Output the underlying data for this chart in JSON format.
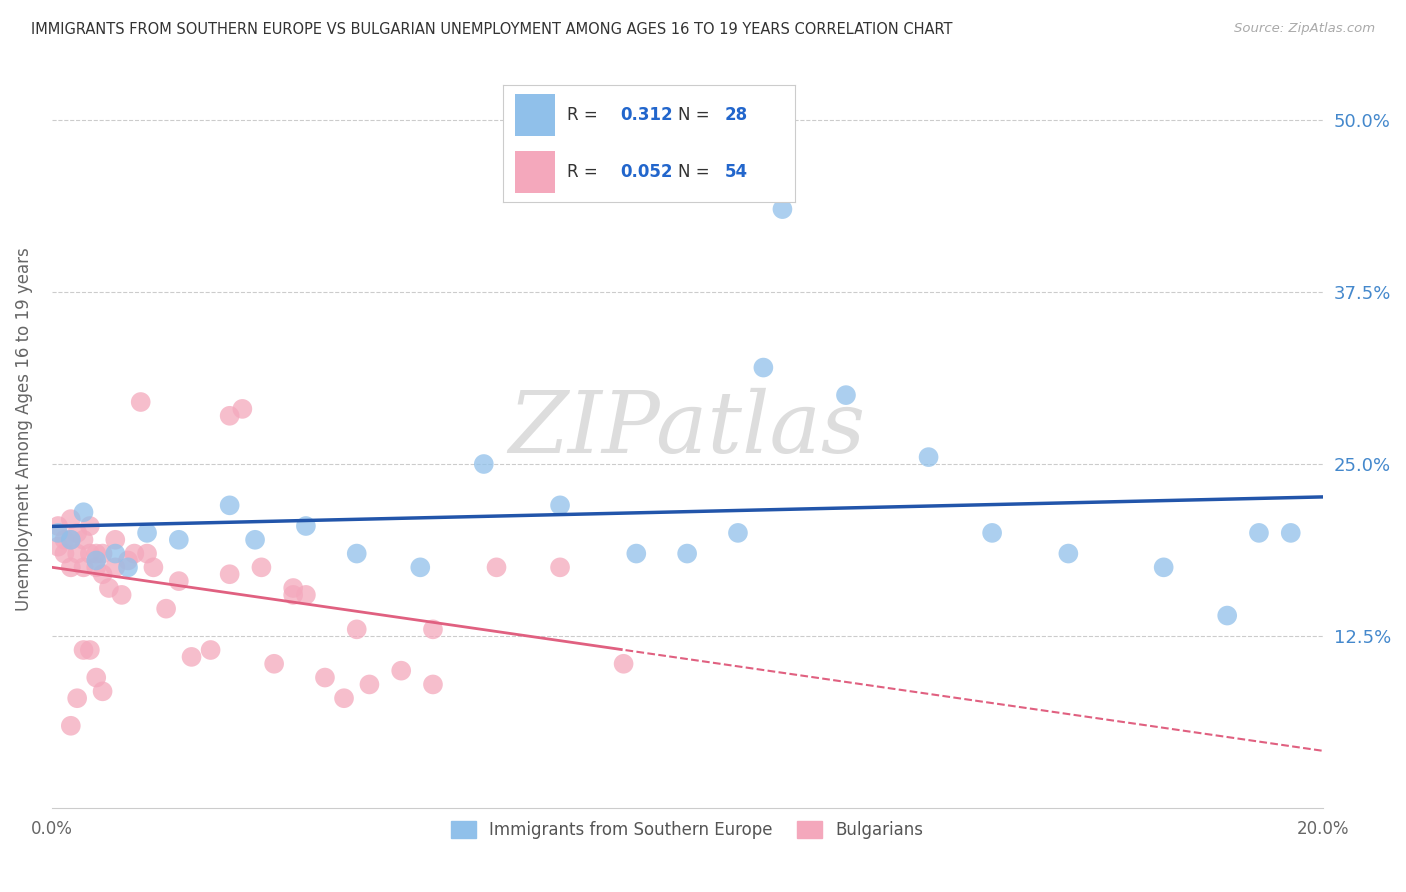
{
  "title": "IMMIGRANTS FROM SOUTHERN EUROPE VS BULGARIAN UNEMPLOYMENT AMONG AGES 16 TO 19 YEARS CORRELATION CHART",
  "source": "Source: ZipAtlas.com",
  "ylabel": "Unemployment Among Ages 16 to 19 years",
  "xlim": [
    0.0,
    0.2
  ],
  "ylim": [
    0.0,
    0.55
  ],
  "ytick_vals": [
    0.125,
    0.25,
    0.375,
    0.5
  ],
  "ytick_labels": [
    "12.5%",
    "25.0%",
    "37.5%",
    "50.0%"
  ],
  "xtick_vals": [
    0.0,
    0.04,
    0.08,
    0.12,
    0.16,
    0.2
  ],
  "xtick_labels": [
    "0.0%",
    "",
    "",
    "",
    "",
    "20.0%"
  ],
  "blue_R": "0.312",
  "blue_N": "28",
  "pink_R": "0.052",
  "pink_N": "54",
  "blue_color": "#90c0ea",
  "pink_color": "#f4a8bc",
  "blue_line_color": "#2255aa",
  "pink_line_color": "#e06080",
  "legend_R_color": "#2266cc",
  "legend_N_color": "#2266cc",
  "ytick_color": "#4488cc",
  "blue_scatter_x": [
    0.001,
    0.003,
    0.005,
    0.007,
    0.01,
    0.012,
    0.015,
    0.02,
    0.028,
    0.032,
    0.04,
    0.048,
    0.058,
    0.068,
    0.08,
    0.092,
    0.1,
    0.108,
    0.115,
    0.125,
    0.138,
    0.148,
    0.112,
    0.16,
    0.175,
    0.185,
    0.19,
    0.195
  ],
  "blue_scatter_y": [
    0.2,
    0.195,
    0.215,
    0.18,
    0.185,
    0.175,
    0.2,
    0.195,
    0.22,
    0.195,
    0.205,
    0.185,
    0.175,
    0.25,
    0.22,
    0.185,
    0.185,
    0.2,
    0.435,
    0.3,
    0.255,
    0.2,
    0.32,
    0.185,
    0.175,
    0.14,
    0.2,
    0.2
  ],
  "pink_scatter_x": [
    0.001,
    0.001,
    0.002,
    0.002,
    0.003,
    0.003,
    0.003,
    0.004,
    0.004,
    0.005,
    0.005,
    0.006,
    0.006,
    0.007,
    0.007,
    0.008,
    0.008,
    0.009,
    0.01,
    0.01,
    0.011,
    0.012,
    0.013,
    0.014,
    0.015,
    0.016,
    0.018,
    0.02,
    0.022,
    0.025,
    0.028,
    0.03,
    0.033,
    0.035,
    0.038,
    0.04,
    0.043,
    0.046,
    0.05,
    0.055,
    0.06,
    0.07,
    0.08,
    0.09,
    0.003,
    0.004,
    0.005,
    0.006,
    0.007,
    0.008,
    0.028,
    0.038,
    0.048,
    0.06
  ],
  "pink_scatter_y": [
    0.19,
    0.205,
    0.195,
    0.185,
    0.175,
    0.195,
    0.21,
    0.185,
    0.2,
    0.195,
    0.175,
    0.205,
    0.185,
    0.185,
    0.175,
    0.17,
    0.185,
    0.16,
    0.175,
    0.195,
    0.155,
    0.18,
    0.185,
    0.295,
    0.185,
    0.175,
    0.145,
    0.165,
    0.11,
    0.115,
    0.285,
    0.29,
    0.175,
    0.105,
    0.155,
    0.155,
    0.095,
    0.08,
    0.09,
    0.1,
    0.09,
    0.175,
    0.175,
    0.105,
    0.06,
    0.08,
    0.115,
    0.115,
    0.095,
    0.085,
    0.17,
    0.16,
    0.13,
    0.13
  ]
}
